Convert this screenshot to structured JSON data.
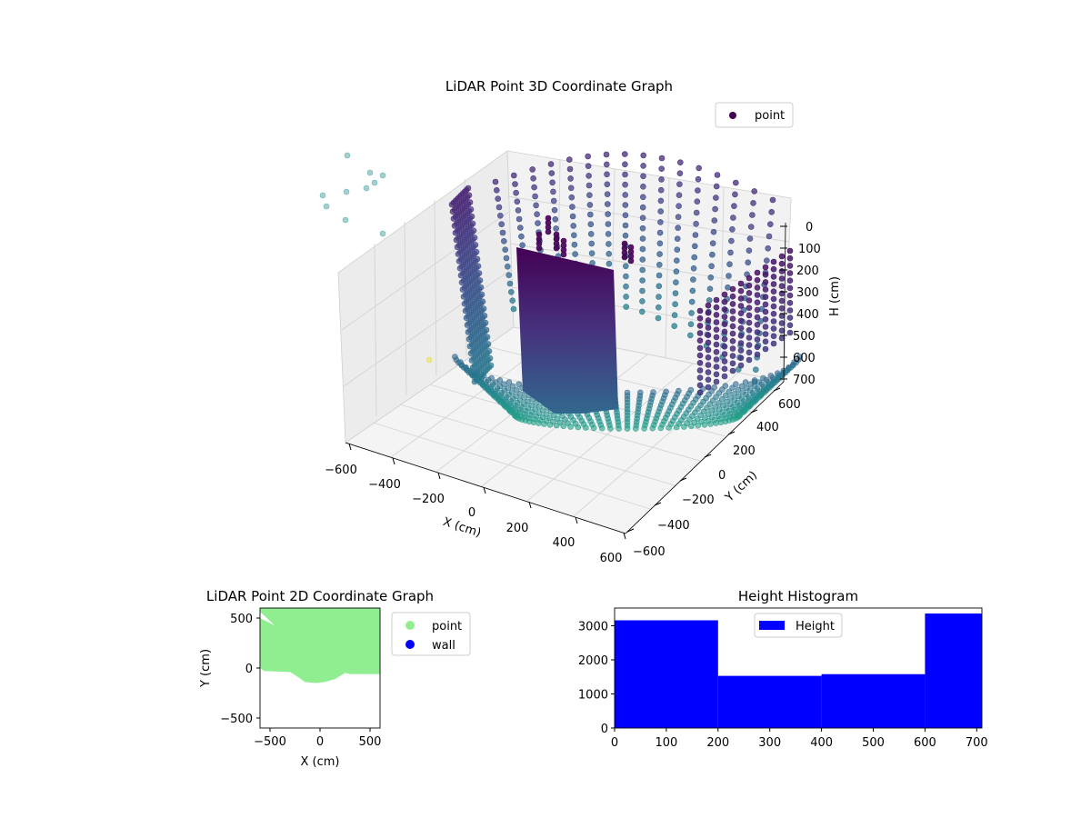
{
  "colors": {
    "point_2d": "#90ee90",
    "wall_2d": "#0000ff",
    "histogram": "#0000ff",
    "legend_point_3d": "#440154",
    "background": "#ffffff"
  },
  "chart_data": [
    {
      "type": "scatter3d",
      "title": "LiDAR Point 3D Coordinate Graph",
      "xlabel": "X (cm)",
      "ylabel": "Y (cm)",
      "zlabel": "H (cm)",
      "x_ticks": [
        "−600",
        "−400",
        "−200",
        "0",
        "200",
        "400",
        "600"
      ],
      "y_ticks": [
        "−600",
        "−400",
        "−200",
        "0",
        "200",
        "400",
        "600"
      ],
      "z_ticks": [
        "0",
        "100",
        "200",
        "300",
        "400",
        "500",
        "600",
        "700"
      ],
      "xlim": [
        -600,
        600
      ],
      "ylim": [
        -600,
        600
      ],
      "zlim": [
        0,
        700
      ],
      "z_inverted": true,
      "colormap": "viridis",
      "legend": [
        "point"
      ],
      "legend_position": "upper-right",
      "description_points": {
        "shape": "cylindrical wall scan of ~600 cm radius with a dense flat panel near the centre",
        "outliers": [
          {
            "x": -560,
            "y": 560,
            "h": -180
          },
          {
            "x": -500,
            "y": 450,
            "h": -120
          },
          {
            "x": -430,
            "y": 520,
            "h": -160
          }
        ]
      }
    },
    {
      "type": "scatter",
      "title": "LiDAR Point 2D Coordinate Graph",
      "xlabel": "X (cm)",
      "ylabel": "Y (cm)",
      "xlim": [
        -600,
        600
      ],
      "ylim": [
        -600,
        600
      ],
      "x_ticks": [
        "−500",
        "0",
        "500"
      ],
      "y_ticks": [
        "500",
        "0",
        "−500"
      ],
      "series": [
        {
          "name": "point",
          "color": "#90ee90",
          "outline": [
            [
              -600,
              600
            ],
            [
              -600,
              0
            ],
            [
              -560,
              -30
            ],
            [
              -300,
              -40
            ],
            [
              -220,
              -90
            ],
            [
              -150,
              -140
            ],
            [
              -50,
              -150
            ],
            [
              50,
              -140
            ],
            [
              150,
              -110
            ],
            [
              250,
              -50
            ],
            [
              300,
              -60
            ],
            [
              600,
              -60
            ],
            [
              600,
              600
            ]
          ]
        },
        {
          "name": "wall",
          "color": "#0000ff",
          "outline": []
        }
      ],
      "legend_position": "outside-right"
    },
    {
      "type": "bar",
      "title": "Height Histogram",
      "xlabel": "",
      "ylabel": "",
      "bins": [
        [
          0,
          200
        ],
        [
          200,
          400
        ],
        [
          400,
          600
        ],
        [
          600,
          710
        ]
      ],
      "values": [
        3160,
        1530,
        1580,
        3360
      ],
      "xlim": [
        0,
        710
      ],
      "ylim": [
        0,
        3520
      ],
      "x_ticks": [
        0,
        100,
        200,
        300,
        400,
        500,
        600,
        700
      ],
      "y_ticks": [
        0,
        1000,
        2000,
        3000
      ],
      "legend": [
        "Height"
      ],
      "legend_position": "upper-center"
    }
  ]
}
